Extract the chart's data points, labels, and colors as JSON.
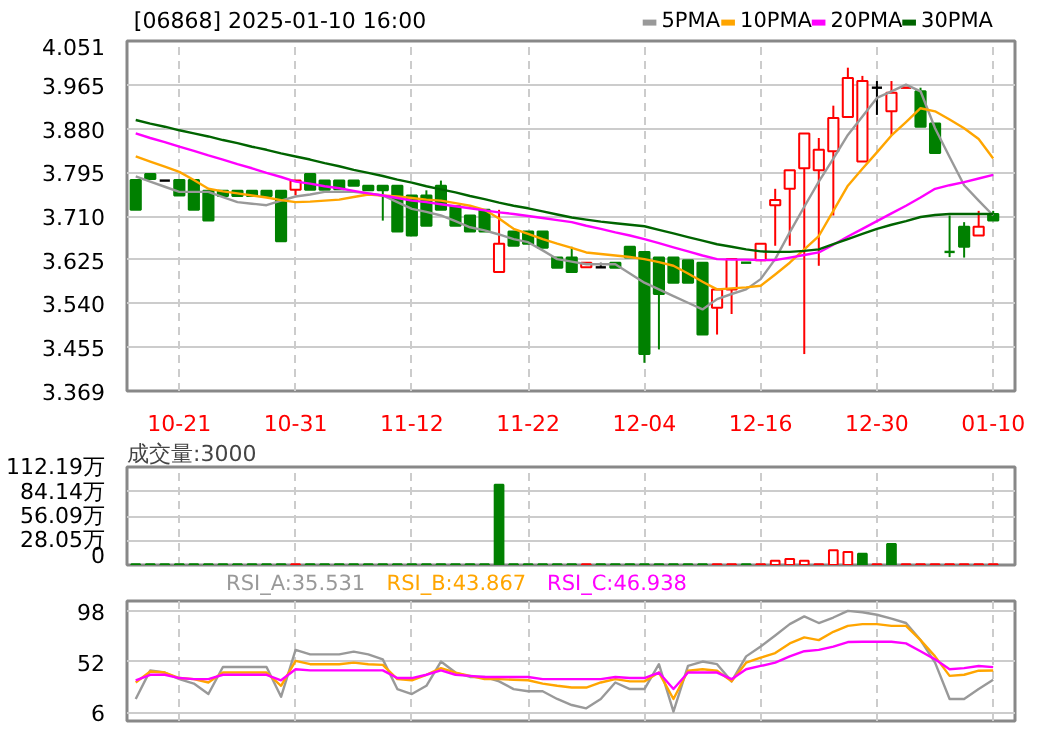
{
  "chart_data": [
    {
      "type": "candlestick",
      "title": "[06868] 2025-01-10 16:00",
      "categories": [
        null,
        null,
        null,
        "10-21",
        null,
        null,
        null,
        null,
        null,
        null,
        null,
        "10-31",
        null,
        null,
        null,
        null,
        null,
        null,
        null,
        "11-12",
        null,
        null,
        null,
        null,
        null,
        null,
        null,
        "11-22",
        null,
        null,
        null,
        null,
        null,
        null,
        null,
        "12-04",
        null,
        null,
        null,
        null,
        null,
        null,
        null,
        "12-16",
        null,
        null,
        null,
        null,
        null,
        null,
        null,
        "12-30",
        null,
        null,
        null,
        null,
        null,
        null,
        null,
        "01-10"
      ],
      "ohlc": [
        [
          3.78,
          3.78,
          3.722,
          3.722
        ],
        [
          3.792,
          3.792,
          3.782,
          3.782
        ],
        [
          3.779,
          3.779,
          3.779,
          3.779
        ],
        [
          3.78,
          3.78,
          3.75,
          3.75
        ],
        [
          3.78,
          3.78,
          3.722,
          3.722
        ],
        [
          3.759,
          3.759,
          3.701,
          3.701
        ],
        [
          3.759,
          3.759,
          3.749,
          3.749
        ],
        [
          3.759,
          3.759,
          3.749,
          3.749
        ],
        [
          3.759,
          3.759,
          3.749,
          3.749
        ],
        [
          3.759,
          3.759,
          3.749,
          3.749
        ],
        [
          3.759,
          3.759,
          3.661,
          3.661
        ],
        [
          3.761,
          3.779,
          3.75,
          3.779
        ],
        [
          3.792,
          3.792,
          3.761,
          3.761
        ],
        [
          3.779,
          3.779,
          3.761,
          3.761
        ],
        [
          3.779,
          3.779,
          3.762,
          3.762
        ],
        [
          3.779,
          3.779,
          3.769,
          3.769
        ],
        [
          3.769,
          3.769,
          3.76,
          3.76
        ],
        [
          3.769,
          3.769,
          3.701,
          3.76
        ],
        [
          3.769,
          3.769,
          3.68,
          3.68
        ],
        [
          3.75,
          3.75,
          3.672,
          3.672
        ],
        [
          3.75,
          3.76,
          3.691,
          3.691
        ],
        [
          3.769,
          3.779,
          3.722,
          3.722
        ],
        [
          3.729,
          3.729,
          3.691,
          3.691
        ],
        [
          3.711,
          3.711,
          3.68,
          3.68
        ],
        [
          3.722,
          3.722,
          3.68,
          3.68
        ],
        [
          3.601,
          3.722,
          3.601,
          3.656
        ],
        [
          3.68,
          3.68,
          3.652,
          3.652
        ],
        [
          3.68,
          3.68,
          3.656,
          3.656
        ],
        [
          3.68,
          3.68,
          3.648,
          3.648
        ],
        [
          3.629,
          3.629,
          3.609,
          3.609
        ],
        [
          3.629,
          3.65,
          3.601,
          3.601
        ],
        [
          3.61,
          3.619,
          3.61,
          3.619
        ],
        [
          3.61,
          3.619,
          3.61,
          3.61
        ],
        [
          3.619,
          3.619,
          3.609,
          3.609
        ],
        [
          3.65,
          3.65,
          3.629,
          3.629
        ],
        [
          3.64,
          3.64,
          3.424,
          3.441
        ],
        [
          3.629,
          3.629,
          3.45,
          3.558
        ],
        [
          3.629,
          3.629,
          3.58,
          3.58
        ],
        [
          3.624,
          3.624,
          3.58,
          3.58
        ],
        [
          3.619,
          3.619,
          3.479,
          3.479
        ],
        [
          3.531,
          3.567,
          3.479,
          3.567
        ],
        [
          3.567,
          3.626,
          3.519,
          3.626
        ],
        [
          3.619,
          3.619,
          3.619,
          3.619
        ],
        [
          3.624,
          3.656,
          3.624,
          3.656
        ],
        [
          3.731,
          3.763,
          3.652,
          3.741
        ],
        [
          3.763,
          3.799,
          3.652,
          3.799
        ],
        [
          3.803,
          3.871,
          3.441,
          3.871
        ],
        [
          3.799,
          3.862,
          3.613,
          3.839
        ],
        [
          3.836,
          3.925,
          3.711,
          3.901
        ],
        [
          3.903,
          3.999,
          3.903,
          3.979
        ],
        [
          3.816,
          3.983,
          3.816,
          3.973
        ],
        [
          3.96,
          3.973,
          3.907,
          3.96
        ],
        [
          3.914,
          3.973,
          3.868,
          3.95
        ],
        [
          3.96,
          3.96,
          3.96,
          3.96
        ],
        [
          3.953,
          3.96,
          3.884,
          3.884
        ],
        [
          3.89,
          3.89,
          3.833,
          3.833
        ],
        [
          3.64,
          3.711,
          3.63,
          3.64
        ],
        [
          3.689,
          3.698,
          3.629,
          3.65
        ],
        [
          3.672,
          3.72,
          3.672,
          3.689
        ],
        [
          3.714,
          3.72,
          3.701,
          3.701
        ]
      ],
      "colors": [
        "#008000",
        "#008000",
        "#000000",
        "#008000",
        "#008000",
        "#008000",
        "#008000",
        "#008000",
        "#008000",
        "#008000",
        "#008000",
        "#ff0000",
        "#008000",
        "#008000",
        "#008000",
        "#008000",
        "#008000",
        "#008000",
        "#008000",
        "#008000",
        "#008000",
        "#008000",
        "#008000",
        "#008000",
        "#008000",
        "#ff0000",
        "#008000",
        "#008000",
        "#008000",
        "#008000",
        "#008000",
        "#ff0000",
        "#000000",
        "#008000",
        "#008000",
        "#008000",
        "#008000",
        "#008000",
        "#008000",
        "#008000",
        "#ff0000",
        "#ff0000",
        "#008000",
        "#ff0000",
        "#ff0000",
        "#ff0000",
        "#ff0000",
        "#ff0000",
        "#ff0000",
        "#ff0000",
        "#ff0000",
        "#000000",
        "#ff0000",
        "#ff0000",
        "#008000",
        "#008000",
        "#008000",
        "#008000",
        "#ff0000",
        "#008000"
      ],
      "series": [
        {
          "name": "5PMA",
          "type": "line",
          "color": "#999999",
          "values": [
            3.787,
            3.777,
            3.767,
            3.757,
            3.757,
            3.757,
            3.747,
            3.737,
            3.734,
            3.731,
            3.74,
            3.748,
            3.752,
            3.757,
            3.757,
            3.757,
            3.754,
            3.75,
            3.737,
            3.724,
            3.718,
            3.711,
            3.7,
            3.688,
            3.682,
            3.674,
            3.665,
            3.659,
            3.643,
            3.626,
            3.621,
            3.616,
            3.616,
            3.616,
            3.598,
            3.58,
            3.567,
            3.554,
            3.541,
            3.528,
            3.548,
            3.558,
            3.567,
            3.587,
            3.626,
            3.678,
            3.728,
            3.777,
            3.822,
            3.868,
            3.904,
            3.94,
            3.953,
            3.966,
            3.953,
            3.881,
            3.825,
            3.77,
            3.74,
            3.711
          ]
        },
        {
          "name": "10PMA",
          "type": "line",
          "color": "#ffa500",
          "values": [
            3.826,
            3.816,
            3.806,
            3.796,
            3.78,
            3.763,
            3.758,
            3.754,
            3.75,
            3.746,
            3.741,
            3.737,
            3.738,
            3.74,
            3.742,
            3.747,
            3.752,
            3.75,
            3.748,
            3.745,
            3.742,
            3.74,
            3.735,
            3.73,
            3.722,
            3.705,
            3.685,
            3.675,
            3.665,
            3.656,
            3.648,
            3.639,
            3.636,
            3.633,
            3.63,
            3.626,
            3.62,
            3.613,
            3.598,
            3.582,
            3.567,
            3.569,
            3.571,
            3.574,
            3.596,
            3.619,
            3.645,
            3.671,
            3.72,
            3.769,
            3.802,
            3.834,
            3.867,
            3.893,
            3.92,
            3.914,
            3.898,
            3.881,
            3.86,
            3.822
          ]
        },
        {
          "name": "20PMA",
          "type": "line",
          "color": "#ff00ff",
          "values": [
            3.871,
            3.862,
            3.854,
            3.845,
            3.837,
            3.828,
            3.82,
            3.811,
            3.803,
            3.794,
            3.786,
            3.777,
            3.773,
            3.768,
            3.764,
            3.759,
            3.754,
            3.75,
            3.745,
            3.74,
            3.737,
            3.733,
            3.729,
            3.725,
            3.721,
            3.717,
            3.714,
            3.71,
            3.706,
            3.702,
            3.698,
            3.691,
            3.685,
            3.678,
            3.672,
            3.665,
            3.657,
            3.649,
            3.641,
            3.633,
            3.626,
            3.625,
            3.625,
            3.624,
            3.624,
            3.629,
            3.634,
            3.639,
            3.654,
            3.67,
            3.685,
            3.7,
            3.715,
            3.73,
            3.746,
            3.763,
            3.77,
            3.776,
            3.783,
            3.79
          ]
        },
        {
          "name": "30PMA",
          "type": "line",
          "color": "#006400",
          "values": [
            3.897,
            3.89,
            3.884,
            3.877,
            3.871,
            3.865,
            3.858,
            3.852,
            3.845,
            3.839,
            3.832,
            3.826,
            3.82,
            3.813,
            3.807,
            3.8,
            3.794,
            3.788,
            3.781,
            3.775,
            3.768,
            3.762,
            3.756,
            3.749,
            3.743,
            3.736,
            3.73,
            3.725,
            3.719,
            3.713,
            3.707,
            3.703,
            3.699,
            3.696,
            3.693,
            3.69,
            3.683,
            3.676,
            3.669,
            3.662,
            3.655,
            3.65,
            3.645,
            3.641,
            3.64,
            3.64,
            3.642,
            3.645,
            3.655,
            3.665,
            3.675,
            3.685,
            3.693,
            3.7,
            3.708,
            3.712,
            3.714,
            3.714,
            3.714,
            3.714
          ]
        }
      ],
      "legend": "top right",
      "ylim": [
        3.369,
        4.051
      ],
      "yticks": [
        3.369,
        3.455,
        {
          "value": 3.54,
          "label": "3.540"
        },
        3.625,
        {
          "value": 3.71,
          "label": "3.710"
        },
        3.795,
        {
          "value": 3.88,
          "label": "3.880"
        },
        3.965,
        4.051
      ],
      "grid": true
    },
    {
      "type": "bar",
      "title": "成交量:3000",
      "categories": [
        null,
        null,
        null,
        null,
        null,
        null,
        null,
        null,
        null,
        null,
        null,
        null,
        null,
        null,
        null,
        null,
        null,
        null,
        null,
        null,
        null,
        null,
        null,
        null,
        null,
        null,
        null,
        null,
        null,
        null,
        null,
        null,
        null,
        null,
        null,
        null,
        null,
        null,
        null,
        null,
        null,
        null,
        null,
        null,
        null,
        null,
        null,
        null,
        null,
        null,
        null,
        null,
        null,
        null,
        null,
        null,
        null,
        null,
        null,
        null
      ],
      "values": [
        1,
        1,
        1,
        1,
        1,
        1,
        1,
        1,
        1,
        1,
        1,
        1,
        1,
        1,
        1,
        1,
        1,
        1,
        1,
        1,
        1,
        1,
        1,
        1,
        1,
        92,
        1,
        1,
        1,
        1,
        1,
        1,
        1,
        1,
        1,
        1,
        1,
        1,
        1,
        1,
        1,
        1,
        1,
        1,
        5,
        7,
        5,
        1,
        17,
        15,
        13,
        1,
        24,
        1,
        1,
        1,
        1,
        1,
        1,
        1
      ],
      "colors": [
        "#008000",
        "#008000",
        "#008000",
        "#008000",
        "#008000",
        "#008000",
        "#008000",
        "#008000",
        "#008000",
        "#008000",
        "#008000",
        "#ff0000",
        "#008000",
        "#008000",
        "#008000",
        "#008000",
        "#008000",
        "#008000",
        "#008000",
        "#008000",
        "#008000",
        "#008000",
        "#008000",
        "#008000",
        "#008000",
        "#008000",
        "#008000",
        "#008000",
        "#008000",
        "#008000",
        "#008000",
        "#ff0000",
        "#008000",
        "#008000",
        "#008000",
        "#008000",
        "#008000",
        "#008000",
        "#008000",
        "#008000",
        "#ff0000",
        "#ff0000",
        "#008000",
        "#ff0000",
        "#ff0000",
        "#ff0000",
        "#ff0000",
        "#ff0000",
        "#ff0000",
        "#ff0000",
        "#008000",
        "#ff0000",
        "#008000",
        "#ff0000",
        "#ff0000",
        "#ff0000",
        "#ff0000",
        "#ff0000",
        "#ff0000",
        "#ff0000"
      ],
      "ylim": [
        0,
        112.19
      ],
      "yticks": [
        0,
        {
          "value": 28.05,
          "label": "28.05万"
        },
        {
          "value": 56.09,
          "label": "56.09万"
        },
        {
          "value": 84.14,
          "label": "84.14万"
        },
        {
          "value": 112.19,
          "label": "112.19万"
        }
      ],
      "tick_labels": "y",
      "grid": true
    },
    {
      "type": "line",
      "categories": [
        null,
        null,
        null,
        null,
        null,
        null,
        null,
        null,
        null,
        null,
        null,
        null,
        null,
        null,
        null,
        null,
        null,
        null,
        null,
        null,
        null,
        null,
        null,
        null,
        null,
        null,
        null,
        null,
        null,
        null,
        null,
        null,
        null,
        null,
        null,
        null,
        null,
        null,
        null,
        null,
        null,
        null,
        null,
        null,
        null,
        null,
        null,
        null,
        null,
        null,
        null,
        null,
        null,
        null,
        null,
        null,
        null,
        null,
        null,
        null
      ],
      "series": [
        {
          "name": "RSI_A:35.531",
          "color": "#999999",
          "values": [
            18,
            44,
            42,
            36,
            32,
            22.5,
            47,
            47,
            47,
            47,
            20,
            62.6,
            58.5,
            58.5,
            58.5,
            61,
            58.5,
            54,
            27,
            22.5,
            30,
            52,
            42,
            38,
            38,
            34,
            27,
            25,
            25,
            18,
            12.5,
            9.5,
            18,
            33,
            27,
            27,
            49.6,
            6.6,
            48,
            52,
            49.6,
            34,
            56.7,
            65.6,
            75.6,
            86,
            93,
            87,
            92,
            98,
            96.8,
            94.5,
            91,
            87,
            71.5,
            51,
            18,
            18,
            27,
            35.5
          ]
        },
        {
          "name": "RSI_B:43.867",
          "color": "#ffa500",
          "values": [
            33,
            43,
            42,
            37,
            36,
            33,
            42,
            42,
            42,
            42,
            30,
            52.6,
            49.6,
            49.6,
            49.6,
            51,
            49.6,
            49,
            36,
            35,
            40,
            46,
            42,
            39,
            36,
            36,
            35.5,
            35,
            32,
            30,
            28.4,
            28.4,
            33,
            36,
            34,
            34,
            42,
            18,
            43.7,
            45,
            43.7,
            34,
            51,
            55.5,
            59.7,
            68.5,
            74,
            71.5,
            79,
            84.4,
            86,
            86,
            84.4,
            84.4,
            71.5,
            56.7,
            39,
            40,
            43.7,
            43.9
          ]
        },
        {
          "name": "RSI_C:46.938",
          "color": "#ff00ff",
          "values": [
            35,
            40,
            40,
            37,
            36,
            36,
            40,
            40,
            40,
            40,
            35,
            45,
            44,
            44,
            44,
            44,
            44,
            44,
            37,
            37,
            40,
            44,
            40,
            39,
            38,
            38,
            38,
            38,
            36,
            36,
            36,
            36,
            36,
            38,
            37,
            37,
            42,
            27,
            42,
            42,
            42,
            36,
            45,
            48,
            51,
            56.7,
            61.4,
            62.6,
            65.6,
            69.7,
            70,
            70,
            70,
            68.5,
            61.4,
            54,
            45,
            46,
            48,
            46.9
          ]
        }
      ],
      "legend": "top left",
      "ylim": [
        -2,
        107
      ],
      "yticks": [
        6,
        52,
        98
      ],
      "tick_labels": "y",
      "grid": true
    }
  ]
}
